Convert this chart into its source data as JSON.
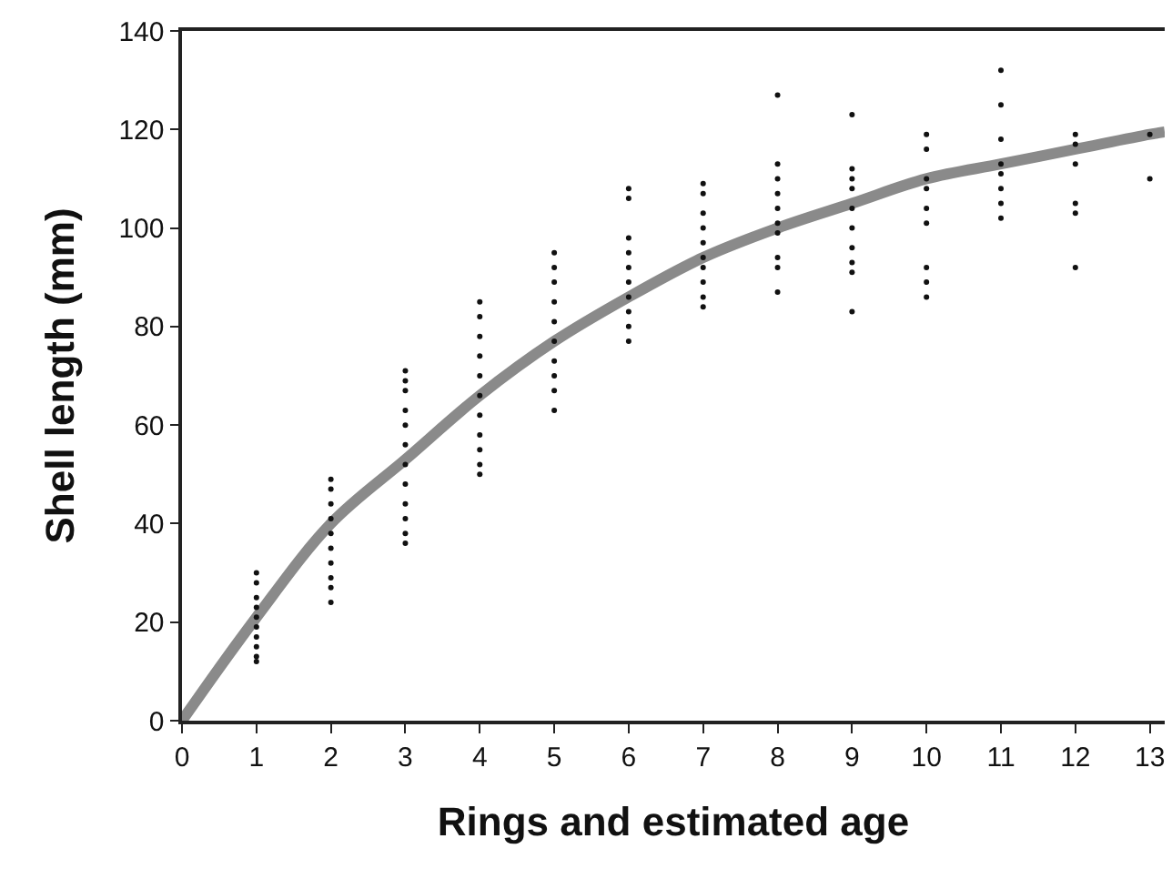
{
  "chart_data": {
    "type": "scatter",
    "xlabel": "Rings and estimated age",
    "ylabel": "Shell length (mm)",
    "xlim": [
      0,
      13.2
    ],
    "xticks": [
      0,
      1,
      2,
      3,
      4,
      5,
      6,
      7,
      8,
      9,
      10,
      11,
      12,
      13
    ],
    "ylim": [
      0,
      140
    ],
    "yticks": [
      0,
      20,
      40,
      60,
      80,
      100,
      120,
      140
    ],
    "grid": false,
    "series": [
      {
        "color": "#111111",
        "marker": "circle",
        "x": [
          1,
          1,
          1,
          1,
          1,
          1,
          1,
          1,
          1,
          1,
          2,
          2,
          2,
          2,
          2,
          2,
          2,
          2,
          2,
          2,
          3,
          3,
          3,
          3,
          3,
          3,
          3,
          3,
          3,
          3,
          3,
          3,
          4,
          4,
          4,
          4,
          4,
          4,
          4,
          4,
          4,
          4,
          4,
          5,
          5,
          5,
          5,
          5,
          5,
          5,
          5,
          5,
          5,
          6,
          6,
          6,
          6,
          6,
          6,
          6,
          6,
          6,
          6,
          7,
          7,
          7,
          7,
          7,
          7,
          7,
          7,
          7,
          7,
          8,
          8,
          8,
          8,
          8,
          8,
          8,
          8,
          8,
          8,
          9,
          9,
          9,
          9,
          9,
          9,
          9,
          9,
          9,
          9,
          10,
          10,
          10,
          10,
          10,
          10,
          10,
          10,
          10,
          11,
          11,
          11,
          11,
          11,
          11,
          11,
          11,
          12,
          12,
          12,
          12,
          12,
          12,
          13,
          13
        ],
        "values": [
          30,
          28,
          25,
          23,
          21,
          19,
          17,
          15,
          13,
          12,
          49,
          47,
          44,
          41,
          38,
          35,
          32,
          29,
          27,
          24,
          71,
          69,
          67,
          63,
          60,
          56,
          52,
          48,
          44,
          41,
          38,
          36,
          85,
          82,
          78,
          74,
          70,
          66,
          62,
          58,
          55,
          52,
          50,
          95,
          92,
          89,
          85,
          81,
          77,
          73,
          70,
          67,
          63,
          108,
          106,
          98,
          95,
          92,
          89,
          86,
          83,
          80,
          77,
          109,
          107,
          103,
          100,
          97,
          94,
          92,
          89,
          86,
          84,
          127,
          113,
          110,
          107,
          104,
          101,
          99,
          94,
          92,
          87,
          123,
          112,
          110,
          108,
          104,
          100,
          96,
          93,
          91,
          83,
          119,
          116,
          110,
          108,
          104,
          101,
          92,
          89,
          86,
          132,
          125,
          118,
          113,
          111,
          108,
          105,
          102,
          119,
          117,
          113,
          105,
          103,
          92,
          119,
          110
        ]
      },
      {
        "type": "line",
        "color": "#8a8a8a",
        "line_style": "solid",
        "marker": "none",
        "x": [
          0,
          1,
          2,
          3,
          4,
          5,
          6,
          7,
          8,
          9,
          10,
          11,
          12,
          13,
          13.2
        ],
        "values": [
          0,
          21,
          40,
          53,
          66,
          77,
          86,
          94,
          100,
          105,
          110,
          113,
          116,
          119,
          119.5
        ]
      }
    ]
  }
}
